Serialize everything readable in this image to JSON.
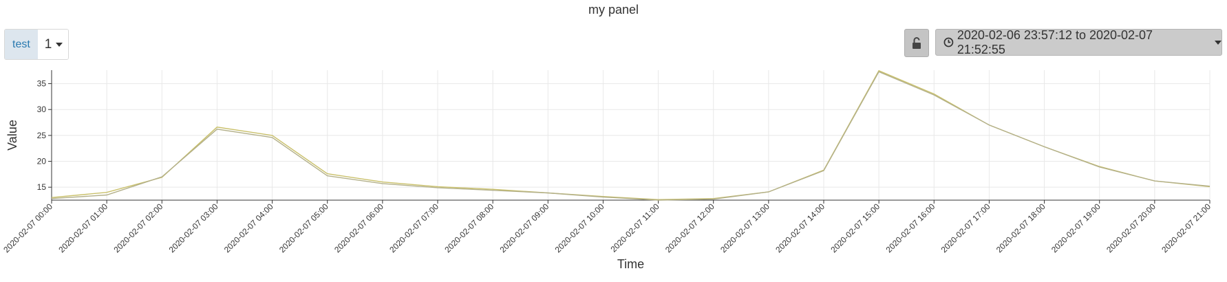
{
  "panel": {
    "title": "my panel"
  },
  "variable": {
    "label": "test",
    "value": "1"
  },
  "timepicker": {
    "range": "2020-02-06 23:57:12 to 2020-02-07 21:52:55"
  },
  "icons": {
    "lock": "unlocked-lock-icon",
    "clock": "clock-icon",
    "caret": "chevron-down-icon"
  },
  "colors": {
    "series_a": "#c9c06a",
    "series_b": "#b3b08a",
    "grid": "#e8e8e8"
  },
  "chart_data": {
    "type": "line",
    "title": "",
    "xlabel": "Time",
    "ylabel": "Value",
    "ylim": [
      12.5,
      37.6
    ],
    "yticks": [
      15,
      20,
      25,
      30,
      35
    ],
    "grid": true,
    "x": [
      "2020-02-07 00:00",
      "2020-02-07 01:00",
      "2020-02-07 02:00",
      "2020-02-07 03:00",
      "2020-02-07 04:00",
      "2020-02-07 05:00",
      "2020-02-07 06:00",
      "2020-02-07 07:00",
      "2020-02-07 08:00",
      "2020-02-07 09:00",
      "2020-02-07 10:00",
      "2020-02-07 11:00",
      "2020-02-07 12:00",
      "2020-02-07 13:00",
      "2020-02-07 14:00",
      "2020-02-07 15:00",
      "2020-02-07 16:00",
      "2020-02-07 17:00",
      "2020-02-07 18:00",
      "2020-02-07 19:00",
      "2020-02-07 20:00",
      "2020-02-07 21:00"
    ],
    "series": [
      {
        "values": [
          13.0,
          14.0,
          16.9,
          26.6,
          25.0,
          17.6,
          16.0,
          15.1,
          14.6,
          13.9,
          13.2,
          12.6,
          12.8,
          14.1,
          18.3,
          37.5,
          33.0,
          27.0,
          22.8,
          19.0,
          16.2,
          15.1
        ]
      },
      {
        "values": [
          12.8,
          13.5,
          17.0,
          26.2,
          24.6,
          17.2,
          15.7,
          14.9,
          14.4,
          13.9,
          13.1,
          12.5,
          12.7,
          14.1,
          18.2,
          37.3,
          32.8,
          27.0,
          22.8,
          18.9,
          16.2,
          15.2
        ]
      }
    ]
  }
}
